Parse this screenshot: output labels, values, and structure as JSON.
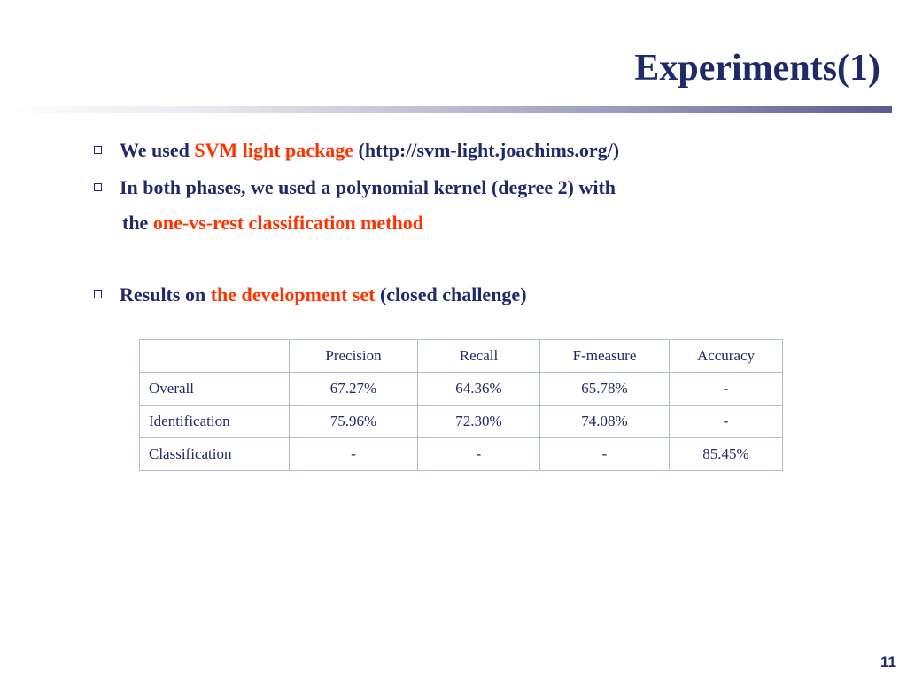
{
  "slide": {
    "title": "Experiments(1)",
    "page_number": "11"
  },
  "bullets": [
    {
      "pre": "We used ",
      "highlight": "SVM light package",
      "post": " (http://svm-light.joachims.org/)"
    },
    {
      "pre": "In both phases, we used a polynomial kernel (degree 2) with",
      "cont_pre": "the ",
      "highlight": "one-vs-rest classification method"
    },
    {
      "pre": "Results on ",
      "highlight": "the development set",
      "post": " (closed challenge)"
    }
  ],
  "table": {
    "headers": [
      "",
      "Precision",
      "Recall",
      "F-measure",
      "Accuracy"
    ],
    "rows": [
      [
        "Overall",
        "67.27%",
        "64.36%",
        "65.78%",
        "-"
      ],
      [
        "Identification",
        "75.96%",
        "72.30%",
        "74.08%",
        "-"
      ],
      [
        "Classification",
        "-",
        "-",
        "-",
        "85.45%"
      ]
    ]
  },
  "colors": {
    "title_text": "#1f2a6a",
    "highlight_text": "#ff3300",
    "table_border": "#aebdd9"
  }
}
